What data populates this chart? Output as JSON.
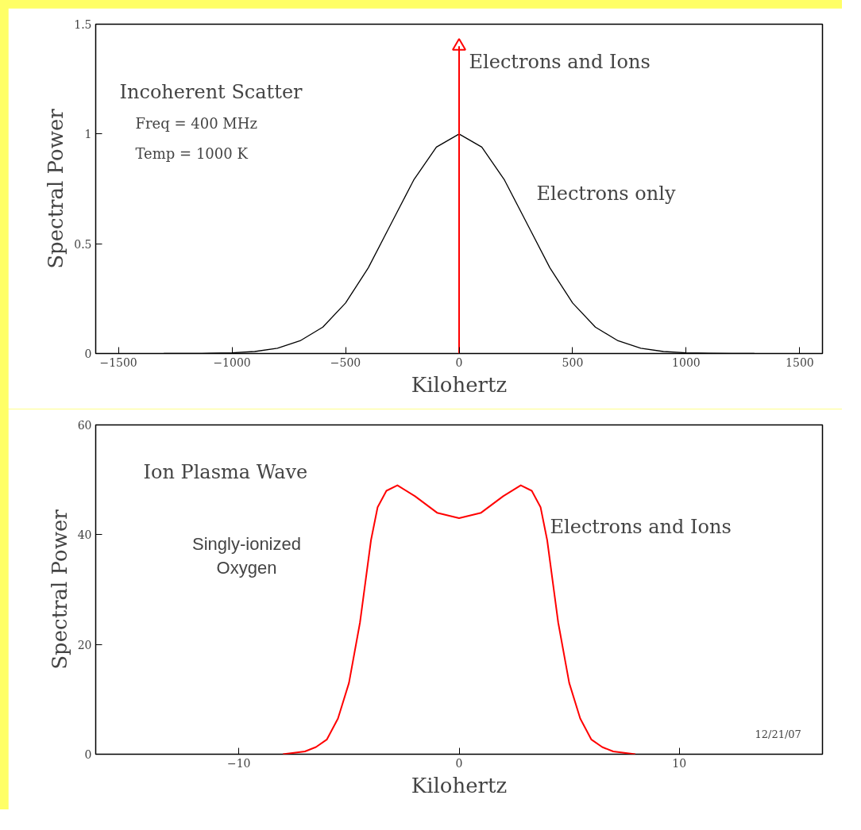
{
  "chart_data": [
    {
      "type": "line",
      "xlabel": "Kilohertz",
      "ylabel": "Spectral Power",
      "xlim": [
        -1600,
        1600
      ],
      "ylim": [
        0,
        1.5
      ],
      "xticks": [
        -1500,
        -1000,
        -500,
        0,
        500,
        1000,
        1500
      ],
      "yticks": [
        0,
        0.5,
        1,
        1.5
      ],
      "x": [
        -1300,
        -1200,
        -1100,
        -1000,
        -900,
        -800,
        -700,
        -600,
        -500,
        -400,
        -300,
        -200,
        -100,
        0,
        100,
        200,
        300,
        400,
        500,
        600,
        700,
        800,
        900,
        1000,
        1100,
        1200,
        1300
      ],
      "series": [
        {
          "color": "#000000",
          "values": [
            0,
            0,
            0.001,
            0.003,
            0.009,
            0.024,
            0.058,
            0.12,
            0.23,
            0.39,
            0.59,
            0.79,
            0.94,
            1,
            0.94,
            0.79,
            0.59,
            0.39,
            0.23,
            0.12,
            0.058,
            0.024,
            0.009,
            0.003,
            0.001,
            0,
            0
          ]
        },
        {
          "color": "#ff0000",
          "x": [
            0,
            0
          ],
          "values": [
            0,
            1.4
          ],
          "marker": "triangle"
        }
      ],
      "annotations": [
        "Incoherent Scatter",
        "Freq = 400 MHz",
        "Temp = 1000 K",
        "Electrons and Ions",
        "Electrons only"
      ]
    },
    {
      "type": "line",
      "xlabel": "Kilohertz",
      "ylabel": "Spectral Power",
      "xlim": [
        -16.5,
        16.5
      ],
      "ylim": [
        0,
        60
      ],
      "xticks": [
        -10,
        0,
        10
      ],
      "yticks": [
        0,
        20,
        40,
        60
      ],
      "x": [
        -8,
        -7,
        -6.5,
        -6,
        -5.5,
        -5,
        -4.5,
        -4,
        -3.7,
        -3.3,
        -2.8,
        -2,
        -1,
        0,
        1,
        2,
        2.8,
        3.3,
        3.7,
        4,
        4.5,
        5,
        5.5,
        6,
        6.5,
        7,
        8
      ],
      "series": [
        {
          "color": "#ff0000",
          "values": [
            0,
            0.5,
            1.3,
            2.7,
            6.5,
            13,
            24,
            39,
            45,
            48,
            49,
            47,
            44,
            43,
            44,
            47,
            49,
            48,
            45,
            39,
            24,
            13,
            6.5,
            2.7,
            1.3,
            0.5,
            0
          ]
        }
      ],
      "annotations": [
        "Singly-ionized\nOxygen",
        "12/21/07",
        "Ion Plasma Wave",
        "Electrons and Ions"
      ]
    }
  ]
}
